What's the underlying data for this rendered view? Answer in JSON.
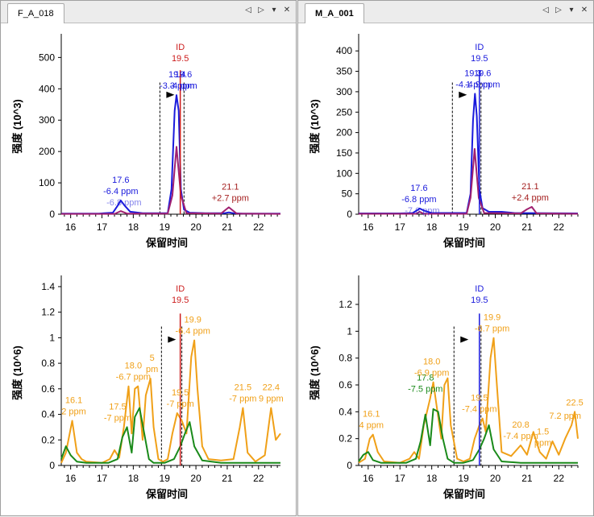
{
  "panes": [
    {
      "tab": "F_A_018"
    },
    {
      "tab": "M_A_001"
    }
  ],
  "tab_controls": {
    "prev": "◁",
    "next": "▷",
    "menu": "▾",
    "close": "✕"
  },
  "chart_data": [
    {
      "type": "line",
      "pane": 0,
      "ylabel": "强度 (10^3)",
      "xlabel": "保留时间",
      "xlim": [
        15.7,
        22.7
      ],
      "ylim": [
        0,
        560
      ],
      "xticks": [
        "16",
        "17",
        "18",
        "19",
        "20",
        "21",
        "22"
      ],
      "yticks": [
        "0",
        "100",
        "200",
        "300",
        "400",
        "500"
      ],
      "series": [
        {
          "color": "#1a1adc",
          "x": [
            15.7,
            16.9,
            17.35,
            17.52,
            17.6,
            17.72,
            17.9,
            18.3,
            19.1,
            19.22,
            19.32,
            19.38,
            19.45,
            19.52,
            19.62,
            19.8,
            20.3,
            20.9,
            21.05,
            21.2,
            21.5,
            22.7
          ],
          "y": [
            2,
            2,
            5,
            30,
            44,
            28,
            8,
            3,
            3,
            80,
            330,
            380,
            330,
            80,
            15,
            5,
            3,
            3,
            6,
            3,
            2,
            2
          ]
        },
        {
          "color": "#a02070",
          "x": [
            15.7,
            17.4,
            17.6,
            17.8,
            19.1,
            19.25,
            19.38,
            19.52,
            19.7,
            20.8,
            21.05,
            21.3,
            22.7
          ],
          "y": [
            1,
            1,
            10,
            2,
            2,
            60,
            215,
            60,
            3,
            2,
            22,
            2,
            1
          ]
        }
      ],
      "peak_id": {
        "label": "ID",
        "value": "19.5",
        "x": 19.5,
        "color": "#cc1c1c"
      },
      "window": [
        18.85,
        19.62
      ],
      "labels": [
        {
          "x": 17.6,
          "lines": [
            "17.6",
            "-6.4 ppm"
          ],
          "extra": "-6.8 ppm",
          "color": "#1a1adc"
        },
        {
          "x": 19.4,
          "lines": [
            "19.4",
            "-3.3 ppm"
          ],
          "color": "#1a1adc"
        },
        {
          "x": 19.6,
          "lines": [
            "19.6",
            "-4 ppm"
          ],
          "color": "#1a1adc"
        },
        {
          "x": 21.1,
          "lines": [
            "21.1",
            "+2.7 ppm"
          ],
          "color": "#a52020"
        }
      ]
    },
    {
      "type": "line",
      "pane": 1,
      "ylabel": "强度 (10^3)",
      "xlabel": "保留时间",
      "xlim": [
        15.7,
        22.6
      ],
      "ylim": [
        0,
        430
      ],
      "xticks": [
        "16",
        "17",
        "18",
        "19",
        "20",
        "21",
        "22"
      ],
      "yticks": [
        "0",
        "50",
        "100",
        "150",
        "200",
        "250",
        "300",
        "350",
        "400"
      ],
      "series": [
        {
          "color": "#1a1adc",
          "x": [
            15.7,
            17.0,
            17.4,
            17.55,
            17.62,
            17.75,
            18.0,
            19.1,
            19.22,
            19.3,
            19.36,
            19.42,
            19.5,
            19.6,
            19.8,
            20.2,
            20.6,
            22.6
          ],
          "y": [
            2,
            2,
            3,
            10,
            14,
            9,
            3,
            3,
            50,
            230,
            295,
            240,
            60,
            15,
            6,
            6,
            3,
            2
          ]
        },
        {
          "color": "#a02070",
          "x": [
            15.7,
            17.5,
            17.62,
            17.75,
            19.1,
            19.22,
            19.35,
            19.48,
            19.65,
            20.8,
            21.0,
            21.15,
            21.3,
            22.6
          ],
          "y": [
            1,
            1,
            6,
            1,
            1,
            40,
            160,
            40,
            3,
            2,
            12,
            18,
            2,
            1
          ]
        }
      ],
      "peak_id": {
        "label": "ID",
        "value": "19.5",
        "x": 19.5,
        "color": "#1a1adc"
      },
      "window": [
        18.65,
        19.55
      ],
      "labels": [
        {
          "x": 17.6,
          "lines": [
            "17.6",
            "-6.8 ppm"
          ],
          "extra": "-7.6 ppm",
          "color": "#1a1adc"
        },
        {
          "x": 19.3,
          "lines": [
            "19.3",
            "-4.1 ppm"
          ],
          "color": "#1a1adc"
        },
        {
          "x": 19.6,
          "lines": [
            "19.6",
            "-4.9 ppm"
          ],
          "color": "#1a1adc"
        },
        {
          "x": 21.1,
          "lines": [
            "21.1",
            "+2.4 ppm"
          ],
          "color": "#a52020"
        }
      ]
    },
    {
      "type": "line",
      "pane": 0,
      "ylabel": "强度 (10^6)",
      "xlabel": "保留时间",
      "xlim": [
        15.7,
        22.7
      ],
      "ylim": [
        0,
        1.45
      ],
      "xticks": [
        "16",
        "17",
        "18",
        "19",
        "20",
        "21",
        "22"
      ],
      "yticks": [
        "0",
        "0.2",
        "0.4",
        "0.6",
        "0.8",
        "1",
        "1.2",
        "1.4"
      ],
      "series": [
        {
          "color": "#f0a018",
          "x": [
            15.7,
            15.85,
            16.05,
            16.2,
            16.35,
            16.5,
            17.0,
            17.25,
            17.4,
            17.55,
            17.7,
            17.85,
            17.95,
            18.05,
            18.15,
            18.3,
            18.4,
            18.55,
            18.65,
            18.8,
            18.95,
            19.1,
            19.25,
            19.4,
            19.55,
            19.7,
            19.85,
            19.95,
            20.05,
            20.2,
            20.4,
            20.8,
            21.2,
            21.4,
            21.5,
            21.65,
            21.9,
            22.2,
            22.4,
            22.55,
            22.7
          ],
          "y": [
            0.02,
            0.1,
            0.35,
            0.1,
            0.05,
            0.03,
            0.02,
            0.05,
            0.12,
            0.06,
            0.3,
            0.62,
            0.25,
            0.6,
            0.62,
            0.2,
            0.55,
            0.68,
            0.3,
            0.05,
            0.03,
            0.05,
            0.25,
            0.41,
            0.35,
            0.25,
            0.85,
            0.98,
            0.6,
            0.15,
            0.05,
            0.04,
            0.05,
            0.3,
            0.45,
            0.1,
            0.03,
            0.08,
            0.45,
            0.2,
            0.25
          ]
        },
        {
          "color": "#1a8a1a",
          "x": [
            15.7,
            15.85,
            16.0,
            16.2,
            16.5,
            17.2,
            17.5,
            17.65,
            17.8,
            17.95,
            18.05,
            18.2,
            18.35,
            18.5,
            18.65,
            19.0,
            19.3,
            19.5,
            19.65,
            19.8,
            19.95,
            20.2,
            20.8,
            22.7
          ],
          "y": [
            0.05,
            0.15,
            0.08,
            0.03,
            0.02,
            0.02,
            0.05,
            0.22,
            0.3,
            0.1,
            0.38,
            0.45,
            0.25,
            0.05,
            0.02,
            0.02,
            0.05,
            0.15,
            0.25,
            0.34,
            0.15,
            0.04,
            0.02,
            0.02
          ]
        }
      ],
      "peak_id": {
        "label": "ID",
        "value": "19.5",
        "x": 19.5,
        "color": "#cc1c1c"
      },
      "window": [
        18.9,
        19.55
      ],
      "labels": [
        {
          "x": 16.1,
          "lines": [
            "16.1",
            "2 ppm"
          ],
          "color": "#f0a018"
        },
        {
          "x": 17.5,
          "lines": [
            "17.5",
            "-7 ppm"
          ],
          "color": "#f0a018"
        },
        {
          "x": 18.0,
          "lines": [
            "18.0",
            "-6.7 ppm"
          ],
          "color": "#f0a018"
        },
        {
          "x": 18.6,
          "lines": [
            "5",
            "pm"
          ],
          "color": "#f0a018"
        },
        {
          "x": 19.5,
          "lines": [
            "19.5",
            "-7 ppm"
          ],
          "color": "#f0a018"
        },
        {
          "x": 19.9,
          "lines": [
            "19.9",
            "-6.4 ppm"
          ],
          "color": "#f0a018"
        },
        {
          "x": 21.5,
          "lines": [
            "21.5",
            "-7 ppm"
          ],
          "color": "#f0a018"
        },
        {
          "x": 22.4,
          "lines": [
            "22.4",
            "9 ppm"
          ],
          "color": "#f0a018"
        }
      ]
    },
    {
      "type": "line",
      "pane": 1,
      "ylabel": "强度 (10^6)",
      "xlabel": "保留时间",
      "xlim": [
        15.7,
        22.6
      ],
      "ylim": [
        0,
        1.38
      ],
      "xticks": [
        "16",
        "17",
        "18",
        "19",
        "20",
        "21",
        "22"
      ],
      "yticks": [
        "0",
        "0.2",
        "0.4",
        "0.6",
        "0.8",
        "1",
        "1.2"
      ],
      "series": [
        {
          "color": "#f0a018",
          "x": [
            15.7,
            15.9,
            16.05,
            16.15,
            16.3,
            16.5,
            17.0,
            17.3,
            17.45,
            17.6,
            17.75,
            17.85,
            17.95,
            18.05,
            18.15,
            18.3,
            18.4,
            18.5,
            18.6,
            18.8,
            19.0,
            19.2,
            19.35,
            19.5,
            19.6,
            19.7,
            19.85,
            19.95,
            20.05,
            20.2,
            20.5,
            20.8,
            21.0,
            21.2,
            21.4,
            21.6,
            21.8,
            22.0,
            22.2,
            22.4,
            22.5,
            22.6
          ],
          "y": [
            0.02,
            0.05,
            0.2,
            0.23,
            0.1,
            0.03,
            0.02,
            0.05,
            0.1,
            0.05,
            0.3,
            0.4,
            0.5,
            0.62,
            0.45,
            0.2,
            0.6,
            0.65,
            0.3,
            0.05,
            0.03,
            0.05,
            0.2,
            0.3,
            0.35,
            0.25,
            0.8,
            0.95,
            0.6,
            0.1,
            0.07,
            0.15,
            0.08,
            0.25,
            0.1,
            0.05,
            0.18,
            0.08,
            0.2,
            0.3,
            0.4,
            0.2
          ]
        },
        {
          "color": "#1a8a1a",
          "x": [
            15.7,
            15.85,
            16.0,
            16.15,
            16.4,
            17.2,
            17.5,
            17.65,
            17.8,
            17.95,
            18.05,
            18.2,
            18.35,
            18.5,
            18.7,
            19.0,
            19.3,
            19.5,
            19.65,
            19.8,
            19.95,
            20.2,
            20.8,
            22.6
          ],
          "y": [
            0.03,
            0.08,
            0.1,
            0.04,
            0.02,
            0.02,
            0.05,
            0.18,
            0.38,
            0.15,
            0.42,
            0.4,
            0.2,
            0.05,
            0.02,
            0.02,
            0.04,
            0.12,
            0.2,
            0.3,
            0.12,
            0.03,
            0.02,
            0.02
          ]
        }
      ],
      "peak_id": {
        "label": "ID",
        "value": "19.5",
        "x": 19.5,
        "color": "#1a1adc"
      },
      "window": [
        18.7,
        19.55
      ],
      "labels": [
        {
          "x": 16.1,
          "lines": [
            "16.1",
            "4 ppm"
          ],
          "color": "#f0a018"
        },
        {
          "x": 17.8,
          "lines": [
            "17.8",
            "-7.5 ppm"
          ],
          "color": "#1a8a1a"
        },
        {
          "x": 18.0,
          "lines": [
            "18.0",
            "-6.9 ppm"
          ],
          "color": "#f0a018"
        },
        {
          "x": 19.5,
          "lines": [
            "19.5",
            "-7.4 ppm"
          ],
          "color": "#f0a018"
        },
        {
          "x": 19.9,
          "lines": [
            "19.9",
            "-6.7 ppm"
          ],
          "color": "#f0a018"
        },
        {
          "x": 20.8,
          "lines": [
            "20.8",
            "-7.4 ppm"
          ],
          "color": "#f0a018"
        },
        {
          "x": 21.5,
          "lines": [
            "1.5",
            "ppm"
          ],
          "color": "#f0a018"
        },
        {
          "x": 22.2,
          "lines": [
            "7.2 ppm"
          ],
          "color": "#f0a018"
        },
        {
          "x": 22.5,
          "lines": [
            "22.5"
          ],
          "color": "#f0a018"
        }
      ]
    }
  ]
}
